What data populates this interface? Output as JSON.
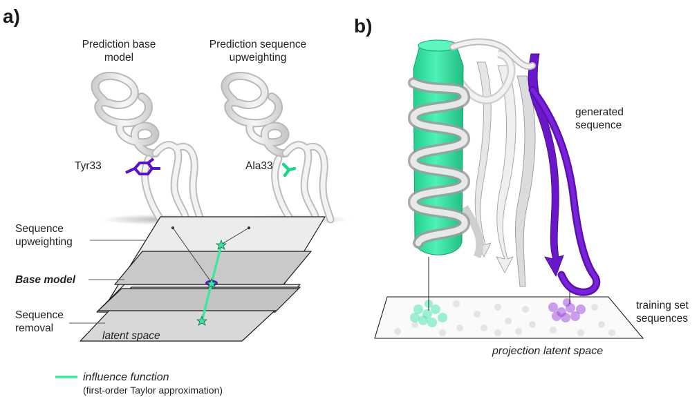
{
  "panel_a": {
    "label": "a)",
    "base_title": [
      "Prediction base",
      "model"
    ],
    "upweight_title": [
      "Prediction sequence",
      "upweighting"
    ],
    "residue_base": "Tyr33",
    "residue_upweight": "Ala33",
    "layers": {
      "upweighting": [
        "Sequence",
        "upweighting"
      ],
      "base_model": "Base model",
      "removal": [
        "Sequence",
        "removal"
      ],
      "latent_space": "latent space"
    },
    "legend": {
      "line_label": "influence function",
      "line_sub": "(first-order Taylor approximation)",
      "color": "#3ee6a0"
    }
  },
  "panel_b": {
    "label": "b)",
    "generated": [
      "generated",
      "sequence"
    ],
    "training": [
      "training set",
      "sequences"
    ],
    "plane_label": "projection latent space"
  },
  "colors": {
    "helix_green": "#1fe39a",
    "strand_purple": "#6a16c9",
    "ribbon_gray": "#e9e9ea",
    "plane_fill": "#d3d3d3",
    "plane_inner": "#bdbdbd"
  }
}
